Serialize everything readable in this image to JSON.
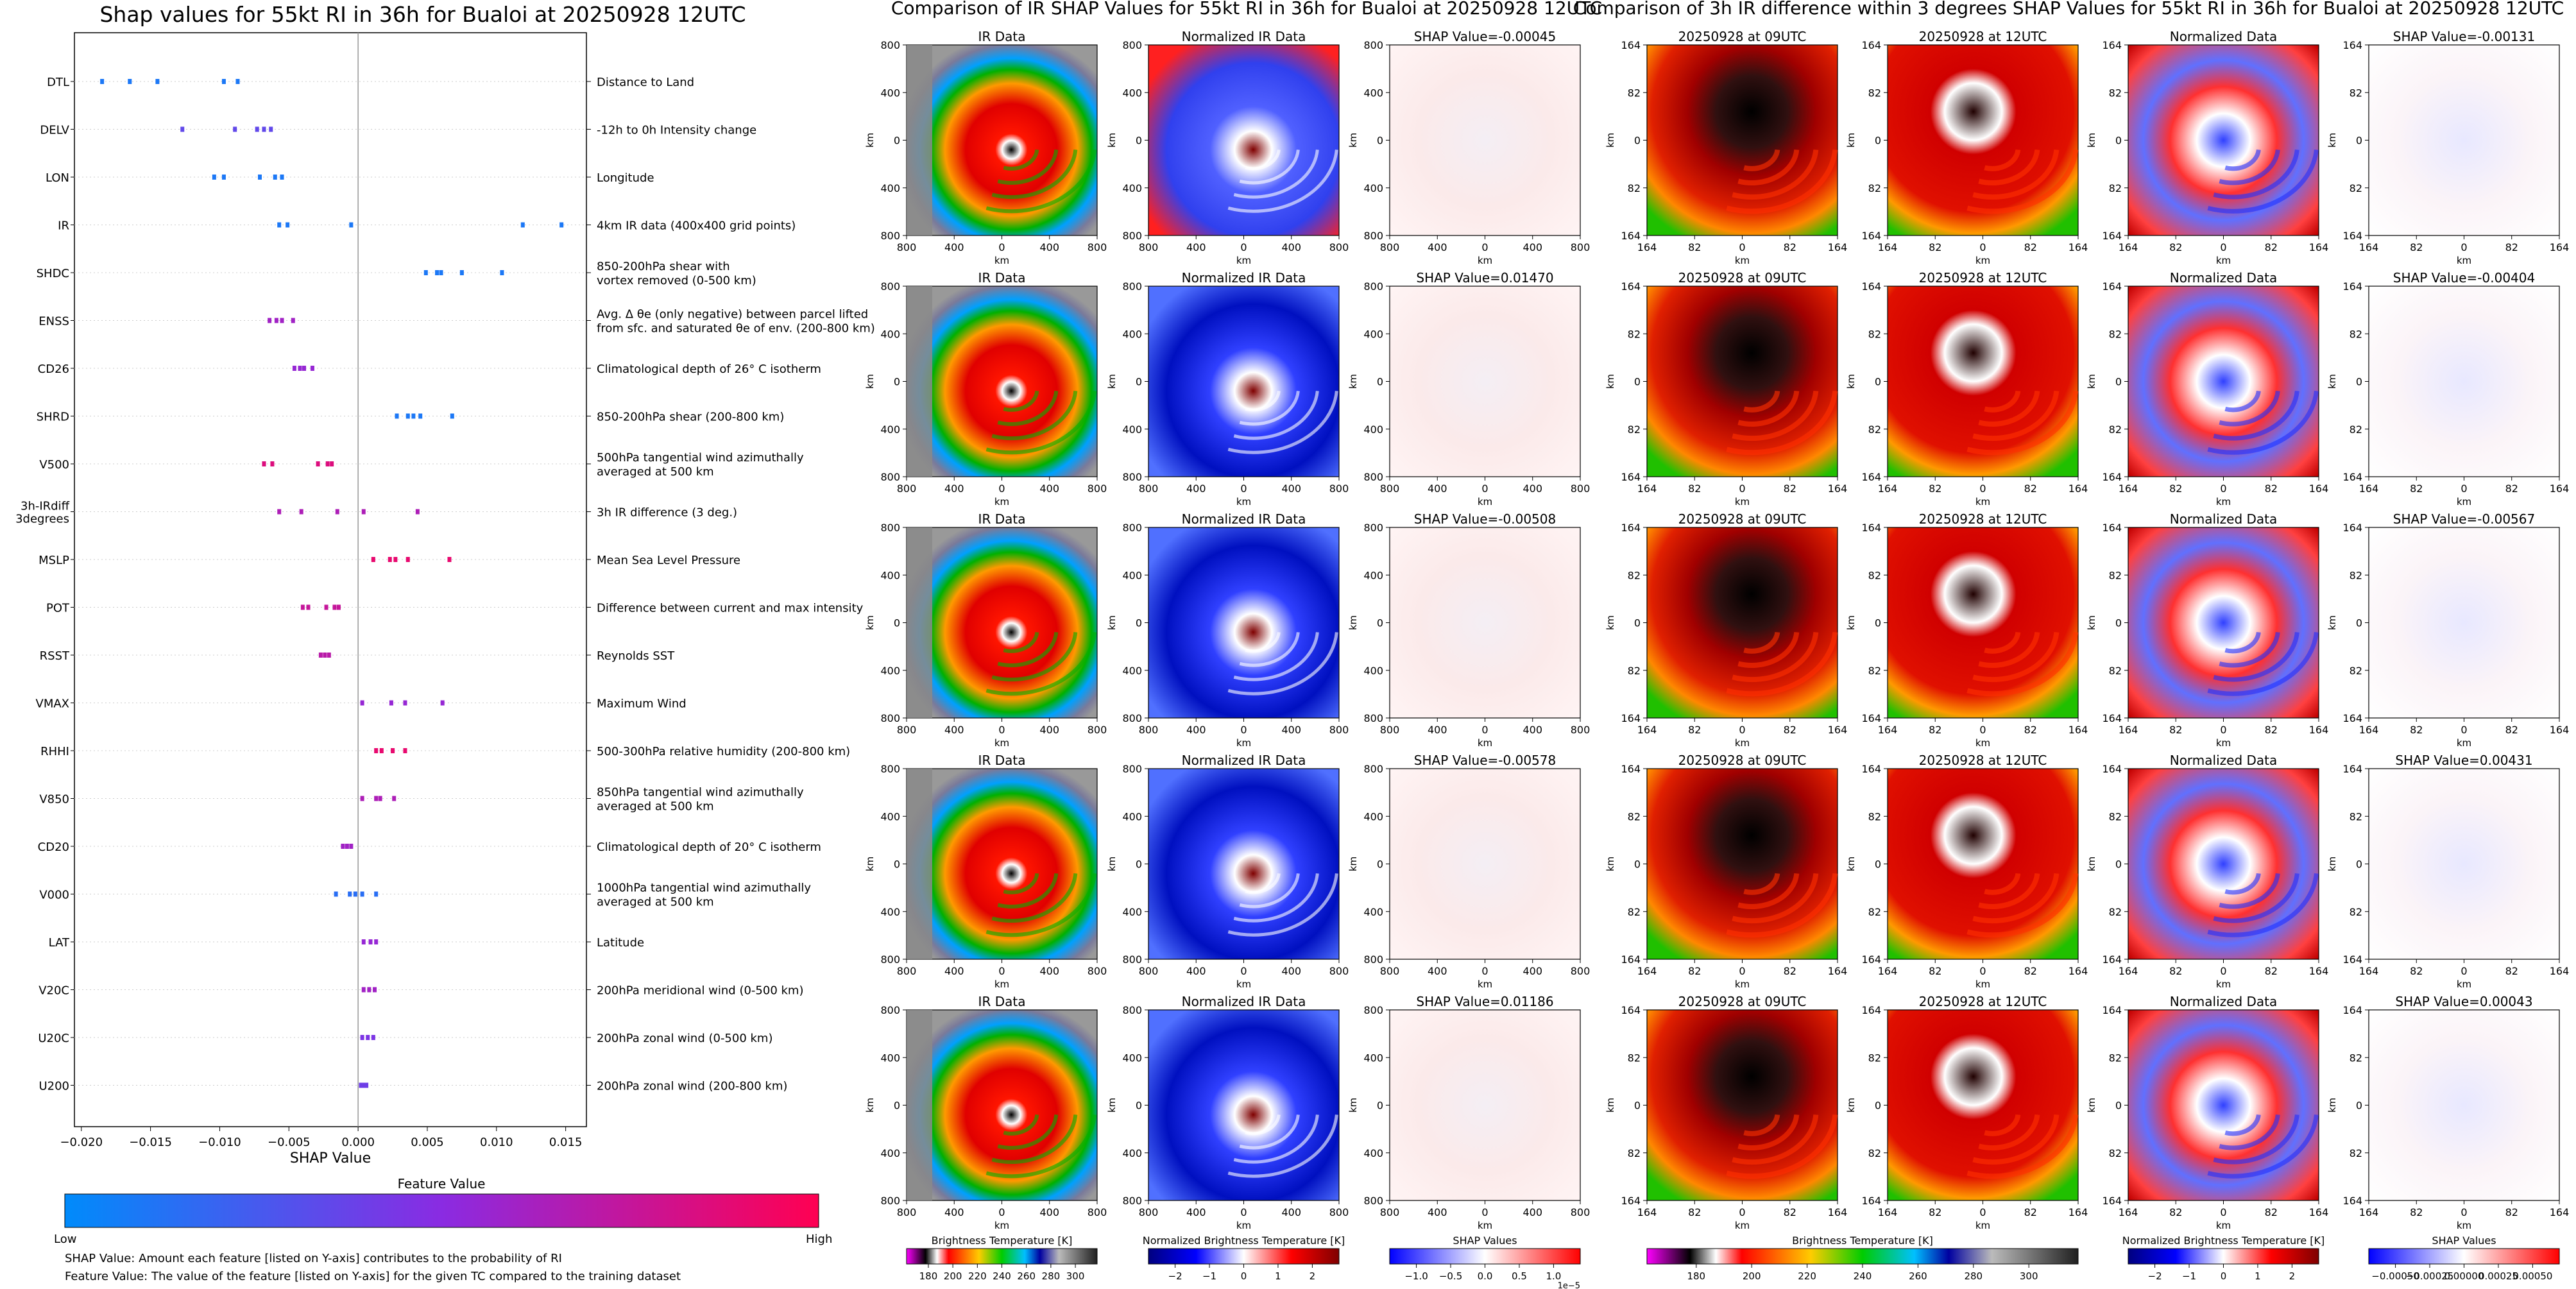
{
  "shap_title": "Shap values for 55kt RI in 36h for Bualoi at 20250928 12UTC",
  "ir_title": "Comparison of IR SHAP Values for 55kt RI in 36h for Bualoi at 20250928 12UTC",
  "diff_title": "Comparison of 3h IR difference within 3 degrees SHAP Values for 55kt RI in 36h for Bualoi at 20250928 12UTC",
  "notes": [
    "SHAP Value: Amount each feature [listed on Y-axis] contributes to the probability of RI",
    "Feature Value: The value of the feature [listed on Y-axis] for the given TC compared to the training dataset"
  ],
  "feature_value_bar": {
    "title": "Feature Value",
    "low": "Low",
    "high": "High",
    "colors": [
      "#008bfb",
      "#8a2be2",
      "#ff0052"
    ]
  },
  "ir_panels": {
    "col_titles": [
      "IR Data",
      "Normalized IR Data"
    ],
    "shap_values": [
      "SHAP Value=-0.00045",
      "SHAP Value=0.01470",
      "SHAP Value=-0.00508",
      "SHAP Value=-0.00578",
      "SHAP Value=0.01186"
    ],
    "ticks": [
      "800",
      "400",
      "0",
      "400",
      "800"
    ],
    "unit": "km"
  },
  "diff_panels": {
    "col_titles": [
      "20250928 at 09UTC",
      "20250928 at 12UTC",
      "Normalized Data"
    ],
    "shap_values": [
      "SHAP Value=-0.00131",
      "SHAP Value=-0.00404",
      "SHAP Value=-0.00567",
      "SHAP Value=0.00431",
      "SHAP Value=0.00043"
    ],
    "ticks": [
      "164",
      "82",
      "0",
      "82",
      "164"
    ],
    "unit": "km"
  },
  "colorbars": [
    {
      "label": "Brightness Temperature [K]",
      "ticks": [
        "180",
        "200",
        "220",
        "240",
        "260",
        "280",
        "300"
      ],
      "offset": ""
    },
    {
      "label": "Normalized Brightness Temperature [K]",
      "ticks": [
        "−2",
        "−1",
        "0",
        "1",
        "2"
      ],
      "offset": ""
    },
    {
      "label": "SHAP Values",
      "ticks": [
        "−1.0",
        "−0.5",
        "0.0",
        "0.5",
        "1.0"
      ],
      "offset": "1e−5"
    },
    {
      "label": "Brightness Temperature [K]",
      "ticks": [
        "180",
        "200",
        "220",
        "240",
        "260",
        "280",
        "300"
      ],
      "offset": ""
    },
    {
      "label": "Normalized Brightness Temperature [K]",
      "ticks": [
        "−2",
        "−1",
        "0",
        "1",
        "2"
      ],
      "offset": ""
    },
    {
      "label": "SHAP Values",
      "ticks": [
        "−0.00050",
        "−0.00025",
        "0.00000",
        "0.00025",
        "0.00050"
      ],
      "offset": ""
    }
  ],
  "chart_data": [
    {
      "type": "scatter",
      "title": "Shap values for 55kt RI in 36h for Bualoi at 20250928 12UTC",
      "xlabel": "SHAP Value",
      "ylabel": "",
      "xlim": [
        -0.0205,
        0.0165
      ],
      "xticks": [
        -0.02,
        -0.015,
        -0.01,
        -0.005,
        0.0,
        0.005,
        0.01,
        0.015
      ],
      "xtick_labels": [
        "−0.020",
        "−0.015",
        "−0.010",
        "−0.005",
        "0.000",
        "0.005",
        "0.010",
        "0.015"
      ],
      "grid": false,
      "features": [
        {
          "name": "DTL",
          "desc": [
            "Distance to Land"
          ],
          "values": [
            -0.0185,
            -0.0165,
            -0.0145,
            -0.0097,
            -0.0087
          ],
          "fv": 0.1
        },
        {
          "name": "DELV",
          "desc": [
            "-12h to 0h Intensity change"
          ],
          "values": [
            -0.0127,
            -0.0089,
            -0.0073,
            -0.0068,
            -0.0063
          ],
          "fv": 0.35
        },
        {
          "name": "LON",
          "desc": [
            "Longitude"
          ],
          "values": [
            -0.0104,
            -0.0097,
            -0.0071,
            -0.006,
            -0.0055
          ],
          "fv": 0.1
        },
        {
          "name": "IR",
          "desc": [
            "4km IR data (400x400 grid points)"
          ],
          "values": [
            -0.0057,
            -0.0051,
            -0.0005,
            0.0119,
            0.0147
          ],
          "fv": 0.1
        },
        {
          "name": "SHDC",
          "desc": [
            "850-200hPa shear with",
            "vortex removed (0-500 km)"
          ],
          "values": [
            0.0049,
            0.0057,
            0.006,
            0.0075,
            0.0104
          ],
          "fv": 0.1
        },
        {
          "name": "ENSS",
          "desc": [
            "Avg. Δ θe (only negative) between parcel lifted",
            "from sfc. and saturated θe of env. (200-800 km)"
          ],
          "values": [
            -0.0064,
            -0.0059,
            -0.0055,
            -0.0047
          ],
          "fv": 0.6
        },
        {
          "name": "CD26",
          "desc": [
            "Climatological depth of 26° C isotherm"
          ],
          "values": [
            -0.0046,
            -0.0042,
            -0.0039,
            -0.0033
          ],
          "fv": 0.55
        },
        {
          "name": "SHRD",
          "desc": [
            "850-200hPa shear (200-800 km)"
          ],
          "values": [
            0.0028,
            0.0036,
            0.004,
            0.0045,
            0.0068
          ],
          "fv": 0.1
        },
        {
          "name": "V500",
          "desc": [
            "500hPa tangential wind azimuthally",
            "averaged at 500 km"
          ],
          "values": [
            -0.0068,
            -0.0062,
            -0.0029,
            -0.0022,
            -0.0019
          ],
          "fv": 0.85
        },
        {
          "name": "3h-IRdiff\n3degrees",
          "desc": [
            "3h IR difference (3 deg.)"
          ],
          "values": [
            -0.0057,
            -0.0041,
            -0.0015,
            0.0004,
            0.0043
          ],
          "fv": 0.65
        },
        {
          "name": "MSLP",
          "desc": [
            "Mean Sea Level Pressure"
          ],
          "values": [
            0.0011,
            0.0023,
            0.0027,
            0.0036,
            0.0066
          ],
          "fv": 0.9
        },
        {
          "name": "POT",
          "desc": [
            "Difference between current and max intensity"
          ],
          "values": [
            -0.004,
            -0.0036,
            -0.0023,
            -0.0017,
            -0.0014
          ],
          "fv": 0.75
        },
        {
          "name": "RSST",
          "desc": [
            "Reynolds SST"
          ],
          "values": [
            -0.0027,
            -0.0024,
            -0.0021
          ],
          "fv": 0.7
        },
        {
          "name": "VMAX",
          "desc": [
            "Maximum Wind"
          ],
          "values": [
            0.0003,
            0.0024,
            0.0034,
            0.0061
          ],
          "fv": 0.55
        },
        {
          "name": "RHHI",
          "desc": [
            "500-300hPa relative humidity (200-800 km)"
          ],
          "values": [
            0.0013,
            0.0017,
            0.0025,
            0.0034
          ],
          "fv": 0.9
        },
        {
          "name": "V850",
          "desc": [
            "850hPa tangential wind azimuthally",
            "averaged at 500 km"
          ],
          "values": [
            0.0003,
            0.0013,
            0.0016,
            0.0026
          ],
          "fv": 0.65
        },
        {
          "name": "CD20",
          "desc": [
            "Climatological depth of 20° C isotherm"
          ],
          "values": [
            -0.0011,
            -0.0008,
            -0.0005
          ],
          "fv": 0.6
        },
        {
          "name": "V000",
          "desc": [
            "1000hPa tangential wind azimuthally",
            "averaged at 500 km"
          ],
          "values": [
            -0.0016,
            -0.0006,
            -0.0002,
            0.0003,
            0.0013
          ],
          "fv": 0.15
        },
        {
          "name": "LAT",
          "desc": [
            "Latitude"
          ],
          "values": [
            0.0004,
            0.0009,
            0.0013
          ],
          "fv": 0.55
        },
        {
          "name": "V20C",
          "desc": [
            "200hPa meridional wind (0-500 km)"
          ],
          "values": [
            0.0004,
            0.0008,
            0.0012
          ],
          "fv": 0.6
        },
        {
          "name": "U20C",
          "desc": [
            "200hPa zonal wind (0-500 km)"
          ],
          "values": [
            0.0003,
            0.0007,
            0.0011
          ],
          "fv": 0.45
        },
        {
          "name": "U200",
          "desc": [
            "200hPa zonal wind (200-800 km)"
          ],
          "values": [
            0.0002,
            0.0004,
            0.0006
          ],
          "fv": 0.4
        }
      ]
    }
  ]
}
